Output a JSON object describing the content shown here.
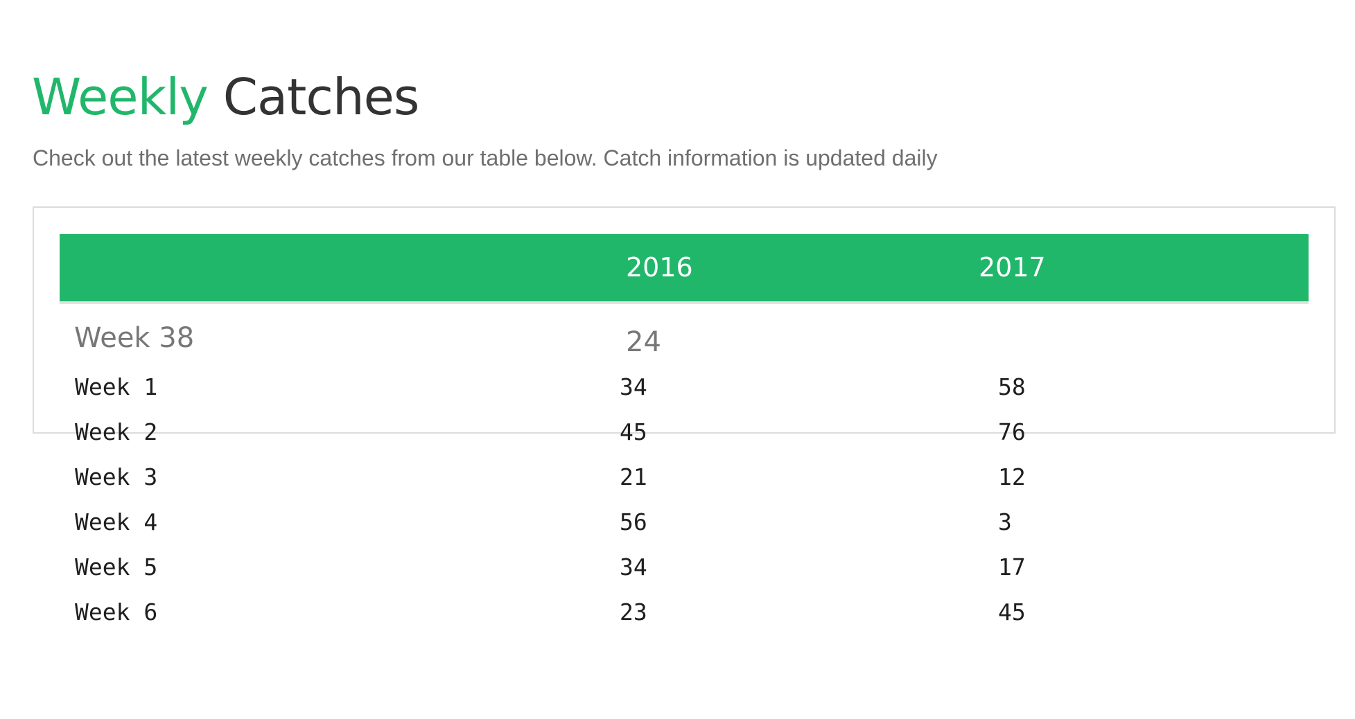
{
  "header": {
    "title_accent": "Weekly",
    "title_rest": "Catches",
    "subtitle": "Check out the latest weekly catches from our table below. Catch information is updated daily"
  },
  "colors": {
    "accent": "#21b76b",
    "title_text": "#333333",
    "subtitle_text": "#6f6f6f",
    "border": "#dcdcdc"
  },
  "table": {
    "columns": [
      "",
      "2016",
      "2017"
    ],
    "first_row": {
      "week": "Week 38",
      "y2016": "24",
      "y2017": ""
    },
    "rows": [
      {
        "week": "Week 1",
        "y2016": "34",
        "y2017": "58"
      },
      {
        "week": "Week 2",
        "y2016": "45",
        "y2017": "76"
      },
      {
        "week": "Week 3",
        "y2016": "21",
        "y2017": "12"
      },
      {
        "week": "Week 4",
        "y2016": "56",
        "y2017": "3"
      },
      {
        "week": "Week 5",
        "y2016": "34",
        "y2017": "17"
      },
      {
        "week": "Week 6",
        "y2016": "23",
        "y2017": "45"
      }
    ]
  }
}
